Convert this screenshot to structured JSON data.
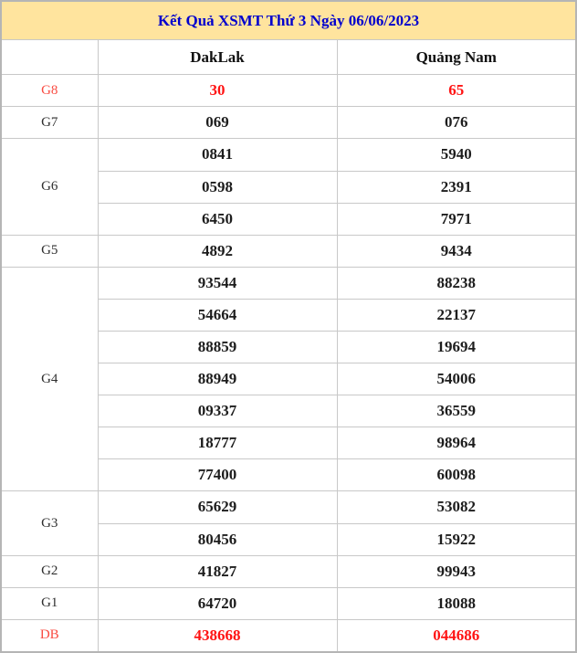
{
  "title": "Kết Quả XSMT Thứ 3 Ngày 06/06/2023",
  "columns": [
    "",
    "DakLak",
    "Quảng Nam"
  ],
  "rows": [
    {
      "label": "G8",
      "highlight": true,
      "values": [
        [
          "30"
        ],
        [
          "65"
        ]
      ]
    },
    {
      "label": "G7",
      "highlight": false,
      "values": [
        [
          "069"
        ],
        [
          "076"
        ]
      ]
    },
    {
      "label": "G6",
      "highlight": false,
      "values": [
        [
          "0841",
          "0598",
          "6450"
        ],
        [
          "5940",
          "2391",
          "7971"
        ]
      ]
    },
    {
      "label": "G5",
      "highlight": false,
      "values": [
        [
          "4892"
        ],
        [
          "9434"
        ]
      ]
    },
    {
      "label": "G4",
      "highlight": false,
      "values": [
        [
          "93544",
          "54664",
          "88859",
          "88949",
          "09337",
          "18777",
          "77400"
        ],
        [
          "88238",
          "22137",
          "19694",
          "54006",
          "36559",
          "98964",
          "60098"
        ]
      ]
    },
    {
      "label": "G3",
      "highlight": false,
      "values": [
        [
          "65629",
          "80456"
        ],
        [
          "53082",
          "15922"
        ]
      ]
    },
    {
      "label": "G2",
      "highlight": false,
      "values": [
        [
          "41827"
        ],
        [
          "99943"
        ]
      ]
    },
    {
      "label": "G1",
      "highlight": false,
      "values": [
        [
          "64720"
        ],
        [
          "18088"
        ]
      ]
    },
    {
      "label": "DB",
      "highlight": true,
      "values": [
        [
          "438668"
        ],
        [
          "044686"
        ]
      ]
    }
  ],
  "colors": {
    "header_bg": "#ffe49e",
    "title_text": "#0000cd",
    "highlight_value": "#ff1313",
    "highlight_label": "#f94b41",
    "value_text": "#1d1d1d",
    "border_inner": "#c8c8c8",
    "border_outer": "#b5b5b5"
  }
}
